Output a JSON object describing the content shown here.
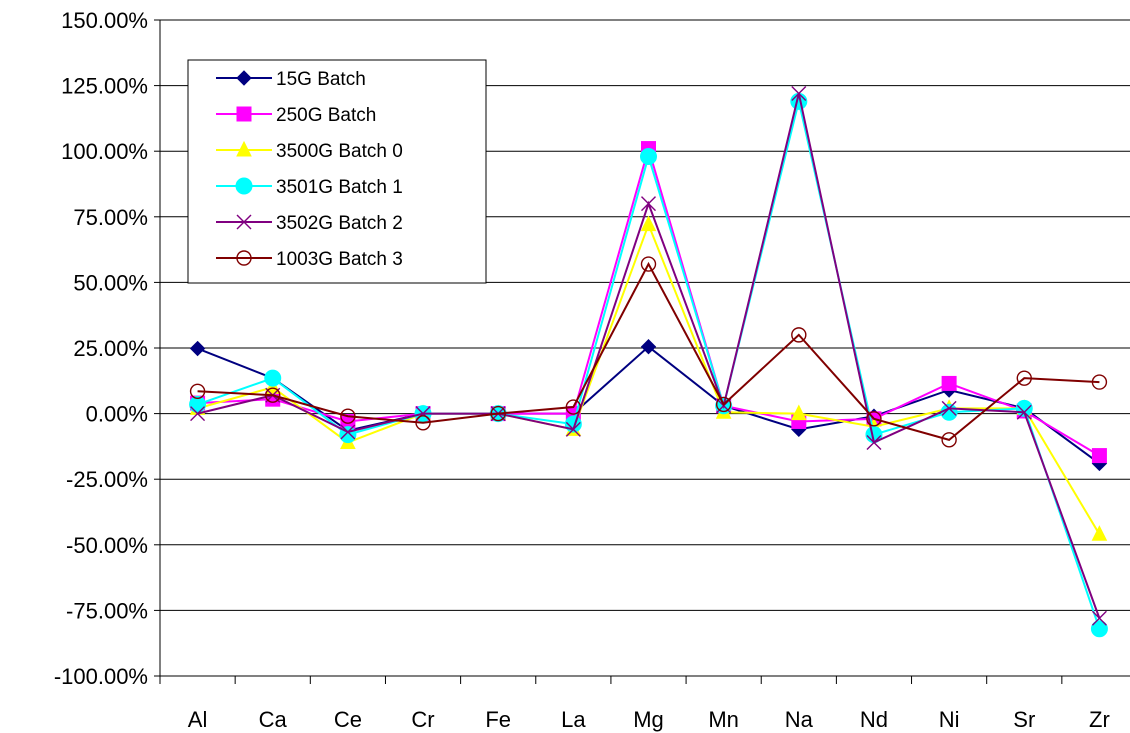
{
  "chart_data": {
    "type": "line",
    "title": "",
    "xlabel": "",
    "ylabel": "",
    "categories": [
      "Al",
      "Ca",
      "Ce",
      "Cr",
      "Fe",
      "La",
      "Mg",
      "Mn",
      "Na",
      "Nd",
      "Ni",
      "Sr",
      "Zr"
    ],
    "ylim": [
      -100,
      150
    ],
    "yticks": [
      150,
      125,
      100,
      75,
      50,
      25,
      0,
      -25,
      -50,
      -75,
      -100
    ],
    "ytick_labels": [
      "150.00%",
      "125.00%",
      "100.00%",
      "75.00%",
      "50.00%",
      "25.00%",
      "0.00%",
      "-25.00%",
      "-50.00%",
      "-75.00%",
      "-100.00%"
    ],
    "y_unit": "%",
    "grid": "horizontal",
    "legend_position": "top-left",
    "series": [
      {
        "name": "15G Batch",
        "color": "#000080",
        "marker": "diamond",
        "values": [
          24.8,
          13.5,
          -6.5,
          0,
          0,
          0,
          25.5,
          3,
          -6,
          -1,
          9,
          2,
          -19
        ]
      },
      {
        "name": "250G Batch",
        "color": "#ff00ff",
        "marker": "square",
        "values": [
          4,
          5.5,
          -3,
          0,
          0,
          0,
          101,
          3,
          -3,
          -2,
          11.5,
          1,
          -16
        ]
      },
      {
        "name": "3500G Batch 0",
        "color": "#ffff00",
        "marker": "triangle",
        "values": [
          2,
          10,
          -11,
          0,
          0,
          -6,
          72,
          0.5,
          0,
          -5,
          2,
          2,
          -46
        ]
      },
      {
        "name": "3501G Batch 1",
        "color": "#00ffff",
        "marker": "circle",
        "values": [
          3.5,
          13.5,
          -8,
          0,
          0,
          -4,
          98,
          3,
          119,
          -8,
          0.5,
          2,
          -82
        ]
      },
      {
        "name": "3502G Batch 2",
        "color": "#800080",
        "marker": "x",
        "values": [
          0,
          7,
          -7,
          0,
          0,
          -6,
          80,
          3,
          122,
          -11,
          2,
          0.5,
          -78
        ]
      },
      {
        "name": "1003G Batch 3",
        "color": "#800000",
        "marker": "open-circle",
        "values": [
          8.5,
          7,
          -1,
          -3.5,
          0,
          2.5,
          57,
          3.5,
          30,
          -2,
          -10,
          13.5,
          12
        ]
      }
    ]
  }
}
